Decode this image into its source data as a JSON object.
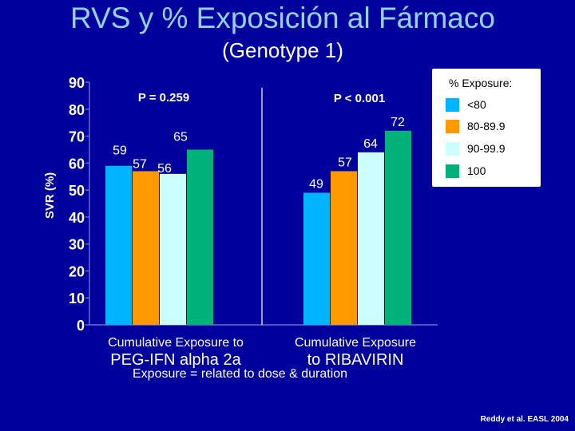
{
  "header": {
    "title": "RVS y % Exposición al Fármaco",
    "subtitle": "(Genotype 1)"
  },
  "chart_data": {
    "type": "bar",
    "title": "RVS y % Exposición al Fármaco",
    "subtitle": "(Genotype 1)",
    "ylabel": "SVR (%)",
    "ylim": [
      0,
      90
    ],
    "yticks": [
      0,
      10,
      20,
      30,
      40,
      50,
      60,
      70,
      80,
      90
    ],
    "categories": [
      "Cumulative Exposure to PEG-IFN alpha 2a",
      "Cumulative Exposure to RIBAVIRIN"
    ],
    "category_labels": [
      {
        "line1": "Cumulative Exposure to",
        "line2": "PEG-IFN alpha 2a"
      },
      {
        "line1": "Cumulative Exposure",
        "line2": "to RIBAVIRIN"
      }
    ],
    "p_values": [
      "P = 0.259",
      "P < 0.001"
    ],
    "legend_title": "% Exposure:",
    "legend_position": "top-right",
    "grid": false,
    "series": [
      {
        "name": "<80",
        "color": "#00b4ff",
        "values": [
          59,
          49
        ]
      },
      {
        "name": "80-89.9",
        "color": "#ff9900",
        "values": [
          57,
          57
        ]
      },
      {
        "name": "90-99.9",
        "color": "#ccffff",
        "values": [
          56,
          64
        ]
      },
      {
        "name": "100",
        "color": "#00b27a",
        "values": [
          65,
          72
        ]
      }
    ],
    "footnote": "Exposure = related to dose & duration",
    "citation": "Reddy et al. EASL 2004"
  }
}
